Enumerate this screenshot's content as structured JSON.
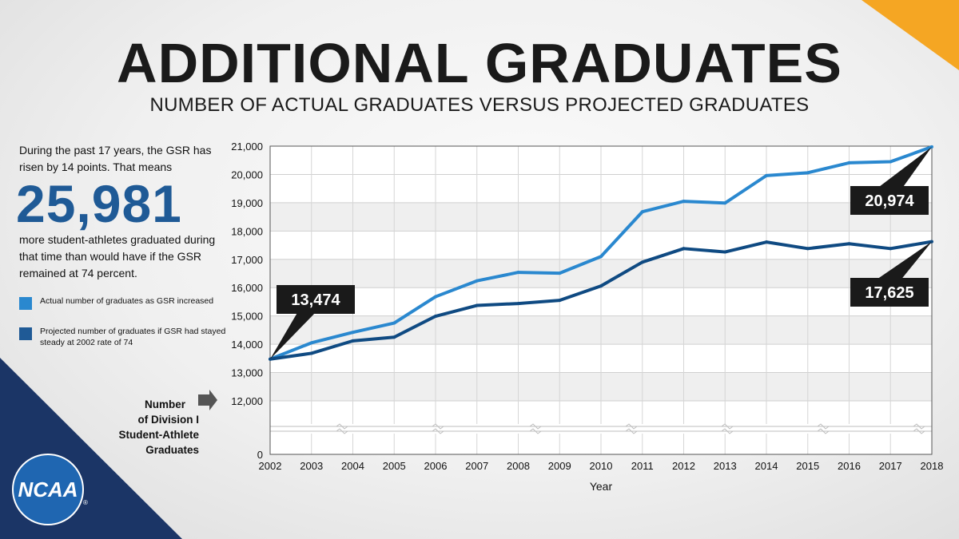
{
  "header": {
    "title": "ADDITIONAL GRADUATES",
    "subtitle": "NUMBER OF ACTUAL GRADUATES VERSUS PROJECTED GRADUATES"
  },
  "sidebar": {
    "intro": "During the past 17 years, the GSR has risen by 14 points. That means",
    "big_number": "25,981",
    "outro": "more student-athletes graduated during that time than would have if the GSR remained at 74 percent.",
    "legend": [
      {
        "label": "Actual number of graduates as GSR increased",
        "color": "#2a88cf"
      },
      {
        "label": "Projected number of graduates if GSR had stayed steady at 2002 rate of 74",
        "color": "#1f5a96"
      }
    ],
    "axis_note": [
      "Number",
      "of Division I",
      "Student-Athlete",
      "Graduates"
    ]
  },
  "logo": {
    "text": "NCAA",
    "mark": "®"
  },
  "colors": {
    "actual": "#2a88cf",
    "projected": "#0f4a82",
    "navy_corner": "#1b3566",
    "orange_corner": "#f5a623",
    "callout_bg": "#1a1a1a"
  },
  "callouts": {
    "start": "13,474",
    "actual_end": "20,974",
    "projected_end": "17,625"
  },
  "chart_data": {
    "type": "line",
    "xlabel": "Year",
    "ylabel": "",
    "x": [
      "2002",
      "2003",
      "2004",
      "2005",
      "2006",
      "2007",
      "2008",
      "2009",
      "2010",
      "2011",
      "2012",
      "2013",
      "2014",
      "2015",
      "2016",
      "2017",
      "2018"
    ],
    "y_ticks": [
      "0",
      "12,000",
      "13,000",
      "14,000",
      "15,000",
      "16,000",
      "17,000",
      "18,000",
      "19,000",
      "20,000",
      "21,000"
    ],
    "axis_break": true,
    "ylim": [
      12000,
      21000
    ],
    "series": [
      {
        "values": [
          13474,
          14050,
          14420,
          14750,
          15680,
          16240,
          16540,
          16510,
          17100,
          18680,
          19050,
          18990,
          19960,
          20060,
          20410,
          20450,
          20974
        ]
      },
      {
        "values": [
          13474,
          13680,
          14120,
          14250,
          14990,
          15370,
          15440,
          15550,
          16060,
          16900,
          17380,
          17260,
          17610,
          17380,
          17550,
          17380,
          17625
        ]
      }
    ],
    "grid": true
  }
}
